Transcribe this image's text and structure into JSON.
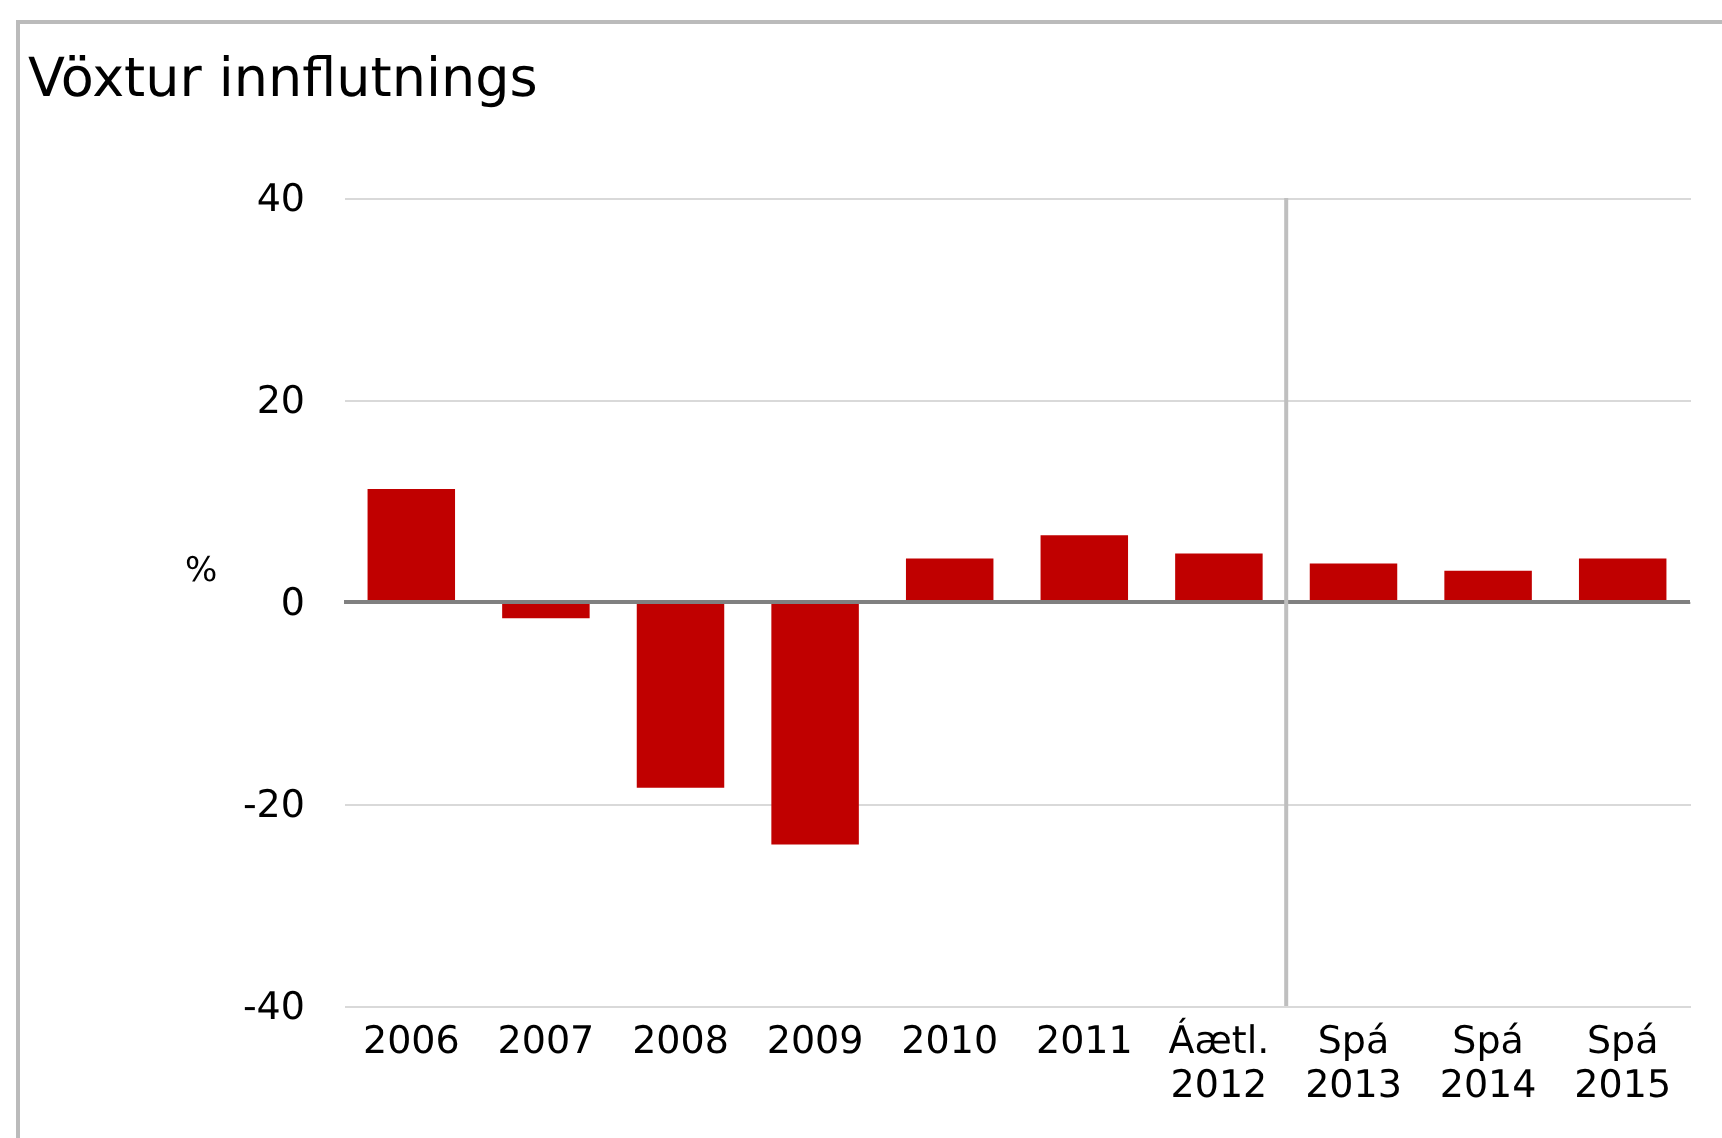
{
  "chart_data": {
    "type": "bar",
    "title": "Vöxtur innflutnings",
    "ylabel": "%",
    "categories": [
      "2006",
      "2007",
      "2008",
      "2009",
      "2010",
      "2011",
      "Áætl. 2012",
      "Spá 2013",
      "Spá 2014",
      "Spá 2015"
    ],
    "values": [
      11.2,
      -1.6,
      -18.4,
      -24.0,
      4.3,
      6.6,
      4.8,
      3.8,
      3.1,
      4.3
    ],
    "color": "#c00000",
    "ylim": [
      -40,
      40
    ],
    "yticks": [
      -40,
      -20,
      0,
      20,
      40
    ],
    "grid": "y",
    "ref_lines": [
      {
        "axis": "x",
        "value": "Spá 2013",
        "color": "#bfbfbf"
      }
    ]
  }
}
